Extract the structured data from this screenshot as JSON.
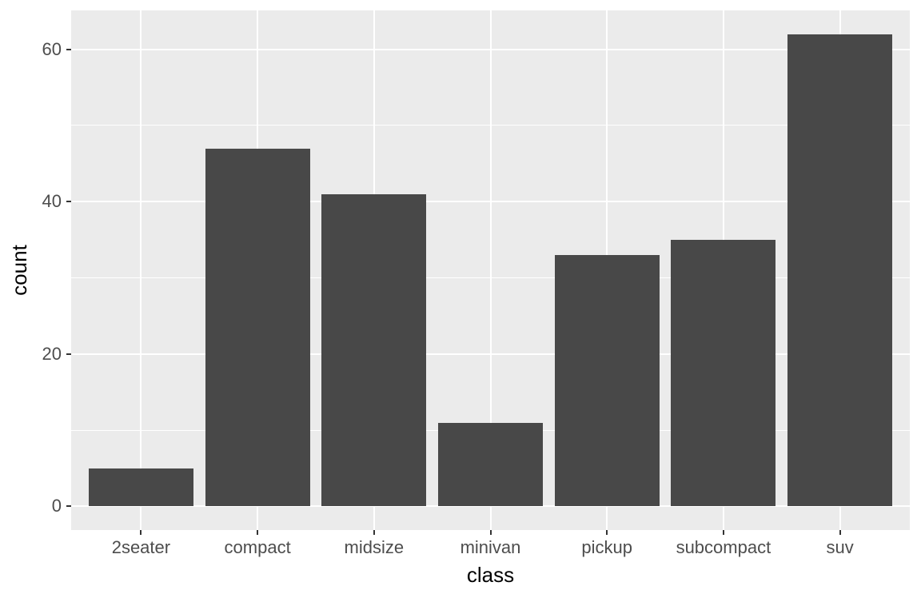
{
  "chart_data": {
    "type": "bar",
    "title": "",
    "xlabel": "class",
    "ylabel": "count",
    "categories": [
      "2seater",
      "compact",
      "midsize",
      "minivan",
      "pickup",
      "subcompact",
      "suv"
    ],
    "values": [
      5,
      47,
      41,
      11,
      33,
      35,
      62
    ],
    "ylim": [
      0,
      62
    ],
    "y_major_ticks": [
      0,
      20,
      40,
      60
    ],
    "y_minor_ticks": [
      10,
      30,
      50
    ],
    "grid": "on",
    "legend_position": "none",
    "style": "ggplot2-default",
    "colors": {
      "bar_fill": "#484848",
      "panel_background": "#EBEBEB",
      "gridline": "#FFFFFF",
      "tick_label_text": "#4D4D4D",
      "axis_title_text": "#000000",
      "tick_mark": "#333333",
      "figure_background": "#FFFFFF"
    }
  }
}
